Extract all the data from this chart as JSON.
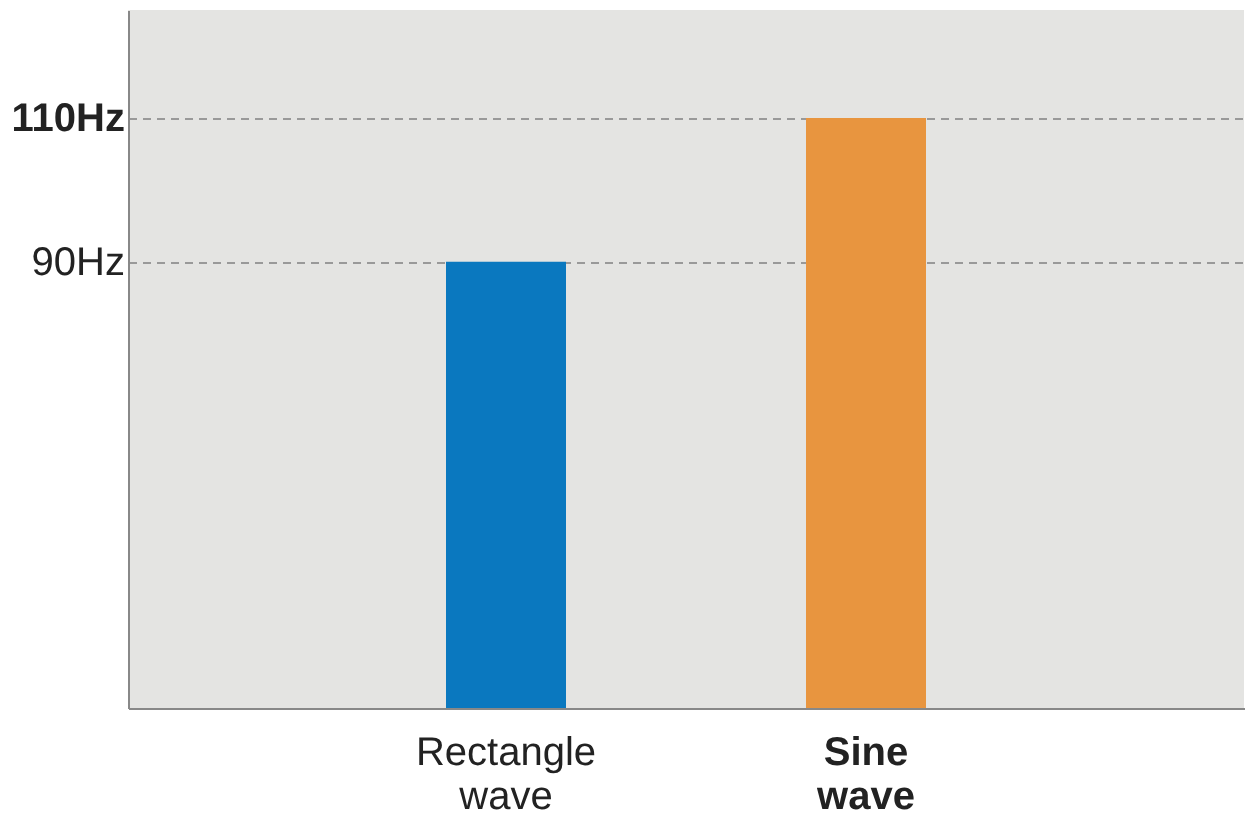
{
  "chart_data": {
    "type": "bar",
    "categories": [
      "Rectangle wave",
      "Sine wave"
    ],
    "values": [
      90,
      110
    ],
    "colors": [
      "#0a78bf",
      "#e8953f"
    ],
    "ylim": [
      28,
      125
    ],
    "yticks": [
      {
        "value": 90,
        "label": "90Hz"
      },
      {
        "value": 110,
        "label": "110Hz"
      }
    ],
    "grid": "y"
  }
}
